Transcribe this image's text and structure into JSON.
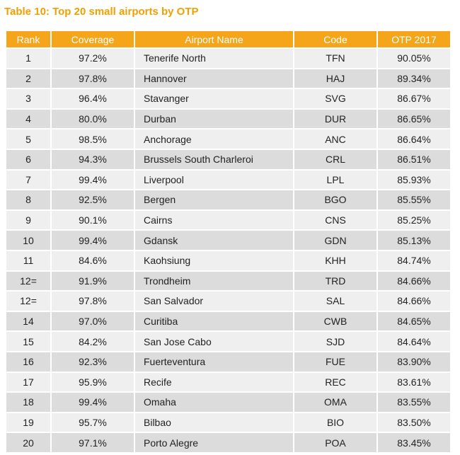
{
  "title": "Table 10: Top 20 small airports by OTP",
  "table": {
    "header": [
      "Rank",
      "Coverage",
      "Airport Name",
      "Code",
      "OTP 2017"
    ],
    "rows": [
      [
        "1",
        "97.2%",
        "Tenerife North",
        "TFN",
        "90.05%"
      ],
      [
        "2",
        "97.8%",
        "Hannover",
        "HAJ",
        "89.34%"
      ],
      [
        "3",
        "96.4%",
        "Stavanger",
        "SVG",
        "86.67%"
      ],
      [
        "4",
        "80.0%",
        "Durban",
        "DUR",
        "86.65%"
      ],
      [
        "5",
        "98.5%",
        "Anchorage",
        "ANC",
        "86.64%"
      ],
      [
        "6",
        "94.3%",
        "Brussels South Charleroi",
        "CRL",
        "86.51%"
      ],
      [
        "7",
        "99.4%",
        "Liverpool",
        "LPL",
        "85.93%"
      ],
      [
        "8",
        "92.5%",
        "Bergen",
        "BGO",
        "85.55%"
      ],
      [
        "9",
        "90.1%",
        "Cairns",
        "CNS",
        "85.25%"
      ],
      [
        "10",
        "99.4%",
        "Gdansk",
        "GDN",
        "85.13%"
      ],
      [
        "11",
        "84.6%",
        "Kaohsiung",
        "KHH",
        "84.74%"
      ],
      [
        "12=",
        "91.9%",
        "Trondheim",
        "TRD",
        "84.66%"
      ],
      [
        "12=",
        "97.8%",
        "San Salvador",
        "SAL",
        "84.66%"
      ],
      [
        "14",
        "97.0%",
        "Curitiba",
        "CWB",
        "84.65%"
      ],
      [
        "15",
        "84.2%",
        "San Jose Cabo",
        "SJD",
        "84.64%"
      ],
      [
        "16",
        "92.3%",
        "Fuerteventura",
        "FUE",
        "83.90%"
      ],
      [
        "17",
        "95.9%",
        "Recife",
        "REC",
        "83.61%"
      ],
      [
        "18",
        "99.4%",
        "Omaha",
        "OMA",
        "83.55%"
      ],
      [
        "19",
        "95.7%",
        "Bilbao",
        "BIO",
        "83.50%"
      ],
      [
        "20",
        "97.1%",
        "Porto Alegre",
        "POA",
        "83.45%"
      ]
    ]
  }
}
